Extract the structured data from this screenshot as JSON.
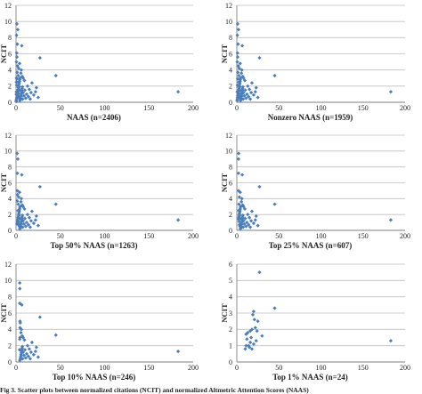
{
  "caption": "Fig 3. Scatter plots between normalized citations (NCIT) and normalized Altmetric Attention Scores (NAAS)",
  "colors": {
    "marker": "#4a7ebb",
    "grid": "#bfbfbf",
    "axis": "#7f7f7f",
    "text": "#222222"
  },
  "chart_data": [
    {
      "type": "scatter",
      "xlabel": "NAAS (n=2406)",
      "ylabel": "NCIT",
      "xlim": [
        0,
        200
      ],
      "ylim": [
        0,
        12
      ],
      "xticks": [
        0,
        50,
        100,
        150,
        200
      ],
      "yticks": [
        0,
        2,
        4,
        6,
        8,
        10,
        12
      ],
      "grid": true,
      "legend": "none",
      "points": [
        [
          0.3,
          0.2
        ],
        [
          0.6,
          0.4
        ],
        [
          0.9,
          0.6
        ],
        [
          1.2,
          0.8
        ],
        [
          1.5,
          1.0
        ],
        [
          1.8,
          1.2
        ],
        [
          2.1,
          1.4
        ],
        [
          2.4,
          1.6
        ],
        [
          2.7,
          1.8
        ],
        [
          3.0,
          2.0
        ],
        [
          3.3,
          2.2
        ],
        [
          3.6,
          2.4
        ],
        [
          3.9,
          2.6
        ],
        [
          4.2,
          2.8
        ],
        [
          4.5,
          3.0
        ],
        [
          4.8,
          0.3
        ],
        [
          5.1,
          0.5
        ],
        [
          5.4,
          0.7
        ],
        [
          5.7,
          0.9
        ],
        [
          6.0,
          1.1
        ],
        [
          6.3,
          1.3
        ],
        [
          6.6,
          1.5
        ],
        [
          6.9,
          1.7
        ],
        [
          7.2,
          1.9
        ],
        [
          7.5,
          0.4
        ],
        [
          0.4,
          1.3
        ],
        [
          0.7,
          2.1
        ],
        [
          1.0,
          2.9
        ],
        [
          1.3,
          3.7
        ],
        [
          1.6,
          4.5
        ],
        [
          1.9,
          0.9
        ],
        [
          2.2,
          2.5
        ],
        [
          2.5,
          3.3
        ],
        [
          2.8,
          1.1
        ],
        [
          3.1,
          0.7
        ],
        [
          3.4,
          1.9
        ],
        [
          3.7,
          0.5
        ],
        [
          4.0,
          1.5
        ],
        [
          4.3,
          0.2
        ],
        [
          8.0,
          1.2
        ],
        [
          9.0,
          0.8
        ],
        [
          10.0,
          1.5
        ],
        [
          11.0,
          0.5
        ],
        [
          12.0,
          1.0
        ],
        [
          13.0,
          2.0
        ],
        [
          14.0,
          0.7
        ],
        [
          15.0,
          1.6
        ],
        [
          16.0,
          0.4
        ],
        [
          17.0,
          1.2
        ],
        [
          18.0,
          2.4
        ],
        [
          20.0,
          0.9
        ],
        [
          22.0,
          1.3
        ],
        [
          9.5,
          2.7
        ],
        [
          7.0,
          3.2
        ],
        [
          5.5,
          3.6
        ],
        [
          0.5,
          5.0
        ],
        [
          1.0,
          5.6
        ],
        [
          0.8,
          6.1
        ],
        [
          1.5,
          7.2
        ],
        [
          0.6,
          8.3
        ],
        [
          2.0,
          9.0
        ],
        [
          1.0,
          9.7
        ],
        [
          3.0,
          4.2
        ],
        [
          6.0,
          4.0
        ],
        [
          4.0,
          4.8
        ],
        [
          8.0,
          3.0
        ],
        [
          6.5,
          7.0
        ],
        [
          27.0,
          5.5
        ],
        [
          45.0,
          3.3
        ],
        [
          25.0,
          0.6
        ],
        [
          23.0,
          1.8
        ],
        [
          0.5,
          3.0
        ],
        [
          0.2,
          0.1
        ],
        [
          0.3,
          1.0
        ],
        [
          0.4,
          2.5
        ],
        [
          183.0,
          1.3
        ]
      ]
    },
    {
      "type": "scatter",
      "xlabel": "Nonzero NAAS (n=1959)",
      "ylabel": "NCIT",
      "xlim": [
        0,
        200
      ],
      "ylim": [
        0,
        12
      ],
      "xticks": [
        0,
        50,
        100,
        150,
        200
      ],
      "yticks": [
        0,
        2,
        4,
        6,
        8,
        10,
        12
      ],
      "grid": true,
      "legend": "none",
      "points": [
        [
          0.3,
          0.2
        ],
        [
          0.6,
          0.4
        ],
        [
          0.9,
          0.6
        ],
        [
          1.2,
          0.8
        ],
        [
          1.5,
          1.0
        ],
        [
          1.8,
          1.2
        ],
        [
          2.1,
          1.4
        ],
        [
          2.4,
          1.6
        ],
        [
          2.7,
          1.8
        ],
        [
          3.0,
          2.0
        ],
        [
          3.3,
          2.2
        ],
        [
          3.6,
          2.4
        ],
        [
          3.9,
          2.6
        ],
        [
          4.2,
          2.8
        ],
        [
          4.5,
          3.0
        ],
        [
          4.8,
          0.3
        ],
        [
          5.1,
          0.5
        ],
        [
          5.4,
          0.7
        ],
        [
          5.7,
          0.9
        ],
        [
          6.0,
          1.1
        ],
        [
          6.3,
          1.3
        ],
        [
          6.6,
          1.5
        ],
        [
          6.9,
          1.7
        ],
        [
          7.2,
          1.9
        ],
        [
          7.5,
          0.4
        ],
        [
          0.4,
          1.3
        ],
        [
          0.7,
          2.1
        ],
        [
          1.0,
          2.9
        ],
        [
          1.3,
          3.7
        ],
        [
          1.6,
          4.5
        ],
        [
          1.9,
          0.9
        ],
        [
          2.2,
          2.5
        ],
        [
          2.5,
          3.3
        ],
        [
          2.8,
          1.1
        ],
        [
          3.1,
          0.7
        ],
        [
          3.4,
          1.9
        ],
        [
          3.7,
          0.5
        ],
        [
          4.0,
          1.5
        ],
        [
          4.3,
          0.2
        ],
        [
          8.0,
          1.2
        ],
        [
          9.0,
          0.8
        ],
        [
          10.0,
          1.5
        ],
        [
          11.0,
          0.5
        ],
        [
          12.0,
          1.0
        ],
        [
          13.0,
          2.0
        ],
        [
          14.0,
          0.7
        ],
        [
          15.0,
          1.6
        ],
        [
          16.0,
          0.4
        ],
        [
          17.0,
          1.2
        ],
        [
          18.0,
          2.4
        ],
        [
          20.0,
          0.9
        ],
        [
          22.0,
          1.3
        ],
        [
          9.5,
          2.7
        ],
        [
          7.0,
          3.2
        ],
        [
          5.5,
          3.6
        ],
        [
          0.5,
          5.0
        ],
        [
          1.0,
          5.6
        ],
        [
          0.8,
          6.1
        ],
        [
          1.5,
          7.2
        ],
        [
          0.6,
          8.3
        ],
        [
          2.0,
          9.0
        ],
        [
          1.0,
          9.7
        ],
        [
          3.0,
          4.2
        ],
        [
          6.0,
          4.0
        ],
        [
          4.0,
          4.8
        ],
        [
          8.0,
          3.0
        ],
        [
          6.5,
          7.0
        ],
        [
          27.0,
          5.5
        ],
        [
          45.0,
          3.3
        ],
        [
          25.0,
          0.6
        ],
        [
          23.0,
          1.8
        ],
        [
          183.0,
          1.3
        ]
      ]
    },
    {
      "type": "scatter",
      "xlabel": "Top 50% NAAS (n=1263)",
      "ylabel": "NCIT",
      "xlim": [
        0,
        200
      ],
      "ylim": [
        0,
        12
      ],
      "xticks": [
        0,
        50,
        100,
        150,
        200
      ],
      "yticks": [
        0,
        2,
        4,
        6,
        8,
        10,
        12
      ],
      "grid": true,
      "legend": "none",
      "points": [
        [
          1.2,
          0.8
        ],
        [
          1.5,
          1.0
        ],
        [
          1.8,
          1.2
        ],
        [
          2.1,
          1.4
        ],
        [
          2.4,
          1.6
        ],
        [
          2.7,
          1.8
        ],
        [
          3.0,
          2.0
        ],
        [
          3.3,
          2.2
        ],
        [
          3.6,
          2.4
        ],
        [
          3.9,
          2.6
        ],
        [
          4.2,
          2.8
        ],
        [
          4.5,
          3.0
        ],
        [
          4.8,
          0.3
        ],
        [
          5.1,
          0.5
        ],
        [
          5.4,
          0.7
        ],
        [
          5.7,
          0.9
        ],
        [
          6.0,
          1.1
        ],
        [
          6.3,
          1.3
        ],
        [
          6.6,
          1.5
        ],
        [
          6.9,
          1.7
        ],
        [
          7.2,
          1.9
        ],
        [
          7.5,
          0.4
        ],
        [
          1.3,
          3.7
        ],
        [
          1.6,
          4.5
        ],
        [
          1.9,
          0.9
        ],
        [
          2.2,
          2.5
        ],
        [
          2.5,
          3.3
        ],
        [
          2.8,
          1.1
        ],
        [
          3.1,
          0.7
        ],
        [
          3.4,
          1.9
        ],
        [
          3.7,
          0.5
        ],
        [
          4.0,
          1.5
        ],
        [
          4.3,
          0.2
        ],
        [
          8.0,
          1.2
        ],
        [
          9.0,
          0.8
        ],
        [
          10.0,
          1.5
        ],
        [
          11.0,
          0.5
        ],
        [
          12.0,
          1.0
        ],
        [
          13.0,
          2.0
        ],
        [
          14.0,
          0.7
        ],
        [
          15.0,
          1.6
        ],
        [
          16.0,
          0.4
        ],
        [
          17.0,
          1.2
        ],
        [
          18.0,
          2.4
        ],
        [
          20.0,
          0.9
        ],
        [
          22.0,
          1.3
        ],
        [
          9.5,
          2.7
        ],
        [
          7.0,
          3.2
        ],
        [
          5.5,
          3.6
        ],
        [
          1.5,
          5.0
        ],
        [
          1.5,
          7.2
        ],
        [
          2.0,
          9.0
        ],
        [
          1.2,
          9.7
        ],
        [
          3.0,
          4.2
        ],
        [
          6.0,
          4.0
        ],
        [
          4.0,
          4.8
        ],
        [
          8.0,
          3.0
        ],
        [
          6.5,
          7.0
        ],
        [
          27.0,
          5.5
        ],
        [
          45.0,
          3.3
        ],
        [
          25.0,
          0.6
        ],
        [
          23.0,
          1.8
        ],
        [
          183.0,
          1.3
        ]
      ]
    },
    {
      "type": "scatter",
      "xlabel": "Top 25% NAAS (n=607)",
      "ylabel": "NCIT",
      "xlim": [
        0,
        200
      ],
      "ylim": [
        0,
        12
      ],
      "xticks": [
        0,
        50,
        100,
        150,
        200
      ],
      "yticks": [
        0,
        2,
        4,
        6,
        8,
        10,
        12
      ],
      "grid": true,
      "legend": "none",
      "points": [
        [
          2.1,
          1.4
        ],
        [
          2.4,
          1.6
        ],
        [
          2.7,
          1.8
        ],
        [
          3.0,
          2.0
        ],
        [
          3.3,
          2.2
        ],
        [
          3.6,
          2.4
        ],
        [
          3.9,
          2.6
        ],
        [
          4.2,
          2.8
        ],
        [
          4.5,
          3.0
        ],
        [
          4.8,
          0.3
        ],
        [
          5.1,
          0.5
        ],
        [
          5.4,
          0.7
        ],
        [
          5.7,
          0.9
        ],
        [
          6.0,
          1.1
        ],
        [
          6.3,
          1.3
        ],
        [
          6.6,
          1.5
        ],
        [
          6.9,
          1.7
        ],
        [
          7.2,
          1.9
        ],
        [
          7.5,
          0.4
        ],
        [
          2.2,
          2.5
        ],
        [
          2.5,
          3.3
        ],
        [
          2.8,
          1.1
        ],
        [
          3.1,
          0.7
        ],
        [
          3.4,
          1.9
        ],
        [
          3.7,
          0.5
        ],
        [
          4.0,
          1.5
        ],
        [
          4.3,
          0.2
        ],
        [
          8.0,
          1.2
        ],
        [
          9.0,
          0.8
        ],
        [
          10.0,
          1.5
        ],
        [
          11.0,
          0.5
        ],
        [
          12.0,
          1.0
        ],
        [
          13.0,
          2.0
        ],
        [
          14.0,
          0.7
        ],
        [
          15.0,
          1.6
        ],
        [
          16.0,
          0.4
        ],
        [
          17.0,
          1.2
        ],
        [
          18.0,
          2.4
        ],
        [
          20.0,
          0.9
        ],
        [
          22.0,
          1.3
        ],
        [
          9.5,
          2.7
        ],
        [
          7.0,
          3.2
        ],
        [
          5.5,
          3.6
        ],
        [
          2.0,
          5.0
        ],
        [
          2.0,
          7.2
        ],
        [
          2.0,
          9.0
        ],
        [
          2.2,
          9.7
        ],
        [
          3.0,
          4.2
        ],
        [
          6.0,
          4.0
        ],
        [
          4.0,
          4.8
        ],
        [
          8.0,
          3.0
        ],
        [
          6.5,
          7.0
        ],
        [
          27.0,
          5.5
        ],
        [
          45.0,
          3.3
        ],
        [
          25.0,
          0.6
        ],
        [
          23.0,
          1.8
        ],
        [
          183.0,
          1.3
        ]
      ]
    },
    {
      "type": "scatter",
      "xlabel": "Top 10% NAAS (n=246)",
      "ylabel": "NCIT",
      "xlim": [
        0,
        200
      ],
      "ylim": [
        0,
        12
      ],
      "xticks": [
        0,
        50,
        100,
        150,
        200
      ],
      "yticks": [
        0,
        2,
        4,
        6,
        8,
        10,
        12
      ],
      "grid": true,
      "legend": "none",
      "points": [
        [
          4.2,
          2.8
        ],
        [
          4.5,
          3.0
        ],
        [
          4.8,
          0.3
        ],
        [
          5.1,
          0.5
        ],
        [
          5.4,
          0.7
        ],
        [
          5.7,
          0.9
        ],
        [
          6.0,
          1.1
        ],
        [
          6.3,
          1.3
        ],
        [
          6.6,
          1.5
        ],
        [
          6.9,
          1.7
        ],
        [
          7.2,
          1.9
        ],
        [
          7.5,
          0.4
        ],
        [
          4.0,
          1.5
        ],
        [
          4.3,
          0.2
        ],
        [
          8.0,
          1.2
        ],
        [
          9.0,
          0.8
        ],
        [
          10.0,
          1.5
        ],
        [
          11.0,
          0.5
        ],
        [
          12.0,
          1.0
        ],
        [
          13.0,
          2.0
        ],
        [
          14.0,
          0.7
        ],
        [
          15.0,
          1.6
        ],
        [
          16.0,
          0.4
        ],
        [
          17.0,
          1.2
        ],
        [
          18.0,
          2.4
        ],
        [
          20.0,
          0.9
        ],
        [
          22.0,
          1.3
        ],
        [
          9.5,
          2.7
        ],
        [
          7.0,
          3.2
        ],
        [
          5.5,
          3.6
        ],
        [
          4.5,
          5.0
        ],
        [
          4.2,
          7.2
        ],
        [
          4.3,
          9.0
        ],
        [
          4.2,
          9.7
        ],
        [
          4.5,
          4.2
        ],
        [
          6.0,
          4.0
        ],
        [
          4.8,
          4.8
        ],
        [
          8.0,
          3.0
        ],
        [
          6.5,
          7.0
        ],
        [
          27.0,
          5.5
        ],
        [
          45.0,
          3.3
        ],
        [
          25.0,
          0.6
        ],
        [
          23.0,
          1.8
        ],
        [
          183.0,
          1.3
        ]
      ]
    },
    {
      "type": "scatter",
      "xlabel": "Top 1% NAAS (n=24)",
      "ylabel": "NCIT",
      "xlim": [
        0,
        200
      ],
      "ylim": [
        0,
        6
      ],
      "xticks": [
        0,
        50,
        100,
        150,
        200
      ],
      "yticks": [
        0,
        1,
        2,
        3,
        4,
        5,
        6
      ],
      "grid": true,
      "legend": "none",
      "points": [
        [
          10,
          0.8
        ],
        [
          11,
          1.0
        ],
        [
          12,
          1.4
        ],
        [
          11,
          1.7
        ],
        [
          13,
          1.8
        ],
        [
          14,
          1.0
        ],
        [
          15,
          0.9
        ],
        [
          16,
          1.2
        ],
        [
          17,
          1.5
        ],
        [
          18,
          2.0
        ],
        [
          19,
          2.9
        ],
        [
          20,
          3.1
        ],
        [
          21,
          2.6
        ],
        [
          22,
          2.1
        ],
        [
          20,
          1.1
        ],
        [
          18,
          0.8
        ],
        [
          23,
          1.3
        ],
        [
          24,
          1.9
        ],
        [
          25,
          2.5
        ],
        [
          27,
          5.5
        ],
        [
          45,
          3.3
        ],
        [
          30,
          1.6
        ],
        [
          16,
          1.9
        ],
        [
          183,
          1.3
        ]
      ]
    }
  ]
}
